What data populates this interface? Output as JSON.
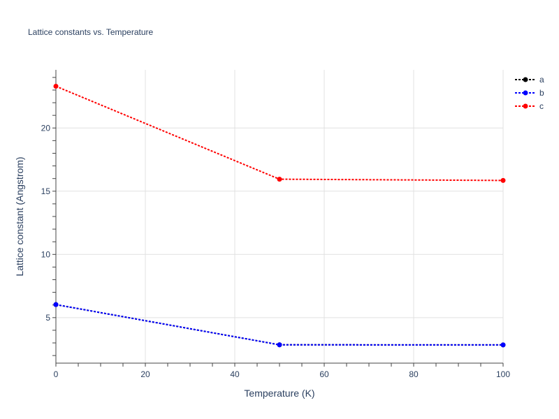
{
  "chart_data": {
    "type": "line",
    "title": "Lattice constants vs. Temperature",
    "xlabel": "Temperature (K)",
    "ylabel": "Lattice constant (Angstrom)",
    "xlim": [
      0,
      100
    ],
    "ylim": [
      1.4,
      24.6
    ],
    "x_ticks": [
      0,
      20,
      40,
      60,
      80,
      100
    ],
    "y_ticks": [
      5,
      10,
      15,
      20
    ],
    "grid": true,
    "legend_position": "top-right",
    "series": [
      {
        "name": "a",
        "color": "#000000",
        "x": [
          0,
          50,
          100
        ],
        "values": [
          6.03,
          2.85,
          2.84
        ]
      },
      {
        "name": "b",
        "color": "#0000ff",
        "x": [
          0,
          50,
          100
        ],
        "values": [
          6.03,
          2.85,
          2.84
        ]
      },
      {
        "name": "c",
        "color": "#ff0000",
        "x": [
          0,
          50,
          100
        ],
        "values": [
          23.3,
          15.95,
          15.85
        ]
      }
    ]
  }
}
